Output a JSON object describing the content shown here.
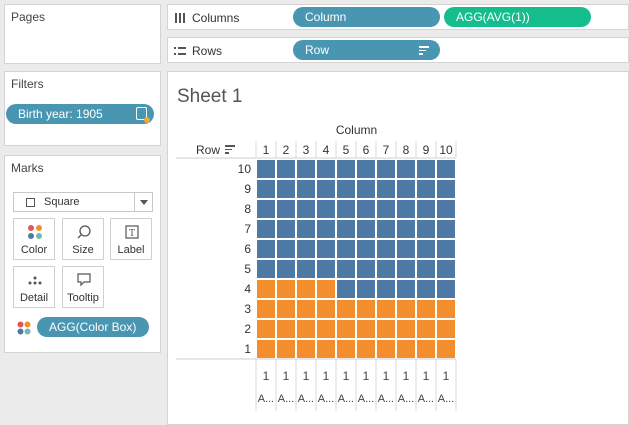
{
  "pages": {
    "title": "Pages"
  },
  "filters": {
    "title": "Filters",
    "pill_label": "Birth year: 1905"
  },
  "marks": {
    "title": "Marks",
    "mark_type": "Square",
    "buttons": {
      "color": "Color",
      "size": "Size",
      "label": "Label",
      "detail": "Detail",
      "tooltip": "Tooltip"
    },
    "encoding_pill": "AGG(Color Box)"
  },
  "columns_shelf": {
    "label": "Columns",
    "pills": [
      "Column",
      "AGG(AVG(1))"
    ]
  },
  "rows_shelf": {
    "label": "Rows",
    "pills": [
      "Row"
    ]
  },
  "sheet": {
    "title": "Sheet 1",
    "column_header": "Column",
    "row_header": "Row"
  },
  "colors": {
    "blue_mark": "#4e79a7",
    "orange_mark": "#f28e2b",
    "pill_blue": "#4996b2",
    "pill_green": "#15bc8c"
  },
  "chart_data": {
    "type": "heatmap",
    "columns": [
      "1",
      "2",
      "3",
      "4",
      "5",
      "6",
      "7",
      "8",
      "9",
      "10"
    ],
    "rows": [
      "10",
      "9",
      "8",
      "7",
      "6",
      "5",
      "4",
      "3",
      "2",
      "1"
    ],
    "series": [
      {
        "color": "#f28e2b",
        "filled_count": 34
      },
      {
        "color": "#4e79a7",
        "filled_count": 66
      }
    ],
    "orange_cells": {
      "1": [
        "1",
        "2",
        "3",
        "4",
        "5",
        "6",
        "7",
        "8",
        "9",
        "10"
      ],
      "2": [
        "1",
        "2",
        "3",
        "4",
        "5",
        "6",
        "7",
        "8",
        "9",
        "10"
      ],
      "3": [
        "1",
        "2",
        "3",
        "4",
        "5",
        "6",
        "7",
        "8",
        "9",
        "10"
      ],
      "4": [
        "1",
        "2",
        "3",
        "4"
      ]
    },
    "column_axis_value": "1",
    "column_axis_label": "A..."
  }
}
